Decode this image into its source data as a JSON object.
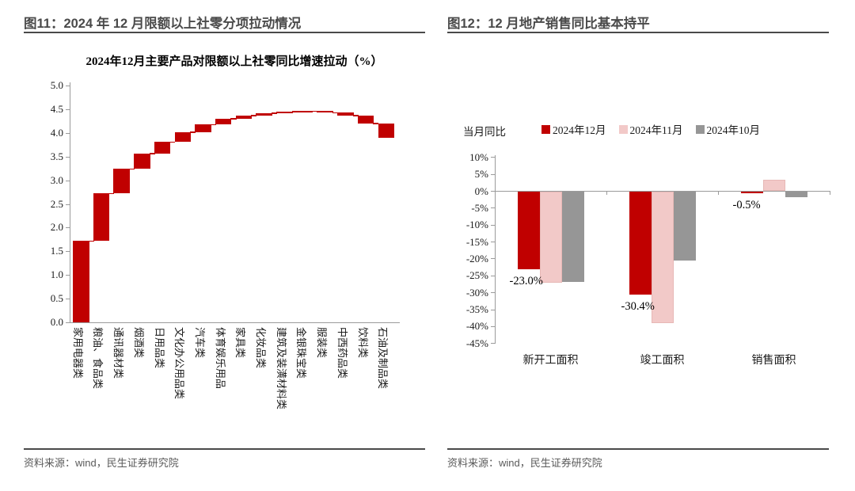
{
  "page": {
    "left_panel": {
      "header": "图11：2024 年 12 月限额以上社零分项拉动情况",
      "source": "资料来源：wind，民生证券研究院"
    },
    "right_panel": {
      "header": "图12：12 月地产销售同比基本持平",
      "source": "资料来源：wind，民生证券研究院"
    }
  },
  "colors": {
    "dark_red": "#C00000",
    "pink": "#F2C9C8",
    "gray": "#969696",
    "axis": "#9b9b9b",
    "header_text": "#4a4a4a"
  },
  "chart_data": [
    {
      "type": "waterfall",
      "title": "2024年12月主要产品对限额以上社零同比增速拉动（%）",
      "categories": [
        "家用电器类",
        "粮油、食品类",
        "通讯器材类",
        "烟酒类",
        "日用品类",
        "文化办公用品类",
        "汽车类",
        "体育娱乐用品",
        "家具类",
        "化妆品类",
        "建筑及装潢材料类",
        "金银珠宝类",
        "服装类",
        "中西药品类",
        "饮料类",
        "石油及制品类"
      ],
      "values": [
        1.72,
        1.0,
        0.52,
        0.33,
        0.24,
        0.21,
        0.16,
        0.12,
        0.07,
        0.05,
        0.03,
        0.01,
        -0.03,
        -0.06,
        -0.17,
        -0.3
      ],
      "cumulative": [
        1.72,
        2.72,
        3.24,
        3.57,
        3.81,
        4.02,
        4.18,
        4.3,
        4.37,
        4.42,
        4.45,
        4.46,
        4.43,
        4.37,
        4.2,
        3.9
      ],
      "ylim": [
        0,
        5
      ],
      "yticks": [
        "5.0",
        "4.5",
        "4.0",
        "3.5",
        "3.0",
        "2.5",
        "2.0",
        "1.5",
        "1.0",
        "0.5",
        "0.0"
      ],
      "bar_color": "#C00000",
      "grid": false,
      "legend_position": "none",
      "xlabel": "",
      "ylabel": ""
    },
    {
      "type": "bar",
      "note": "当月同比",
      "categories": [
        "新开工面积",
        "竣工面积",
        "销售面积"
      ],
      "series": [
        {
          "name": "2024年12月",
          "color": "#C00000",
          "values": [
            -23.0,
            -30.4,
            -0.5
          ]
        },
        {
          "name": "2024年11月",
          "color": "#F2C9C8",
          "values": [
            -26.8,
            -38.8,
            3.2
          ]
        },
        {
          "name": "2024年10月",
          "color": "#969696",
          "values": [
            -26.7,
            -20.4,
            -1.6
          ]
        }
      ],
      "data_labels": [
        {
          "category": "新开工面积",
          "series": "2024年12月",
          "text": "-23.0%"
        },
        {
          "category": "竣工面积",
          "series": "2024年12月",
          "text": "-30.4%"
        },
        {
          "category": "销售面积",
          "series": "2024年12月",
          "text": "-0.5%"
        }
      ],
      "ylim": [
        -45,
        10
      ],
      "yticks": [
        "10%",
        "5%",
        "0%",
        "-5%",
        "-10%",
        "-15%",
        "-20%",
        "-25%",
        "-30%",
        "-35%",
        "-40%",
        "-45%"
      ],
      "grid": false,
      "legend_position": "top",
      "xlabel": "",
      "ylabel": ""
    }
  ]
}
